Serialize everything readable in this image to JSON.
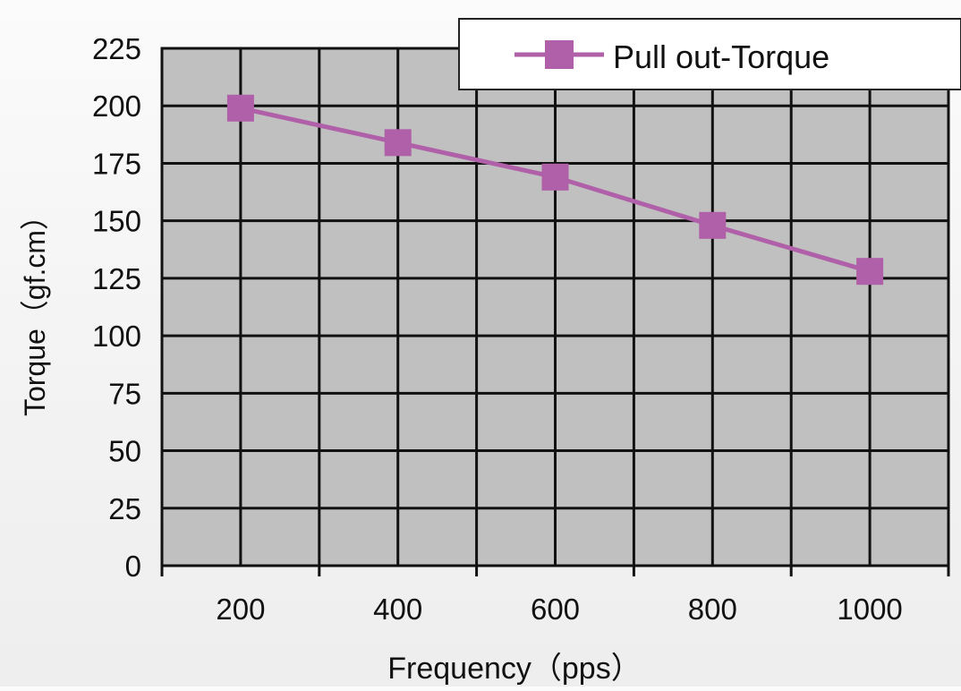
{
  "chart_data": {
    "type": "line",
    "xlabel": "Frequency（pps）",
    "ylabel": "Torque（gf.cm）",
    "x": [
      200,
      400,
      600,
      800,
      1000
    ],
    "x_ticks": [
      "200",
      "400",
      "600",
      "800",
      "1000"
    ],
    "y_ticks": [
      "0",
      "25",
      "50",
      "75",
      "100",
      "125",
      "150",
      "175",
      "200",
      "225"
    ],
    "ylim": [
      0,
      225
    ],
    "grid": true,
    "legend_position": "top-right",
    "plot_background": "#c0c0c0",
    "series": [
      {
        "name": "Pull out-Torque",
        "color": "#b060a8",
        "marker": "square",
        "values": [
          199,
          184,
          169,
          148,
          128
        ]
      }
    ]
  }
}
